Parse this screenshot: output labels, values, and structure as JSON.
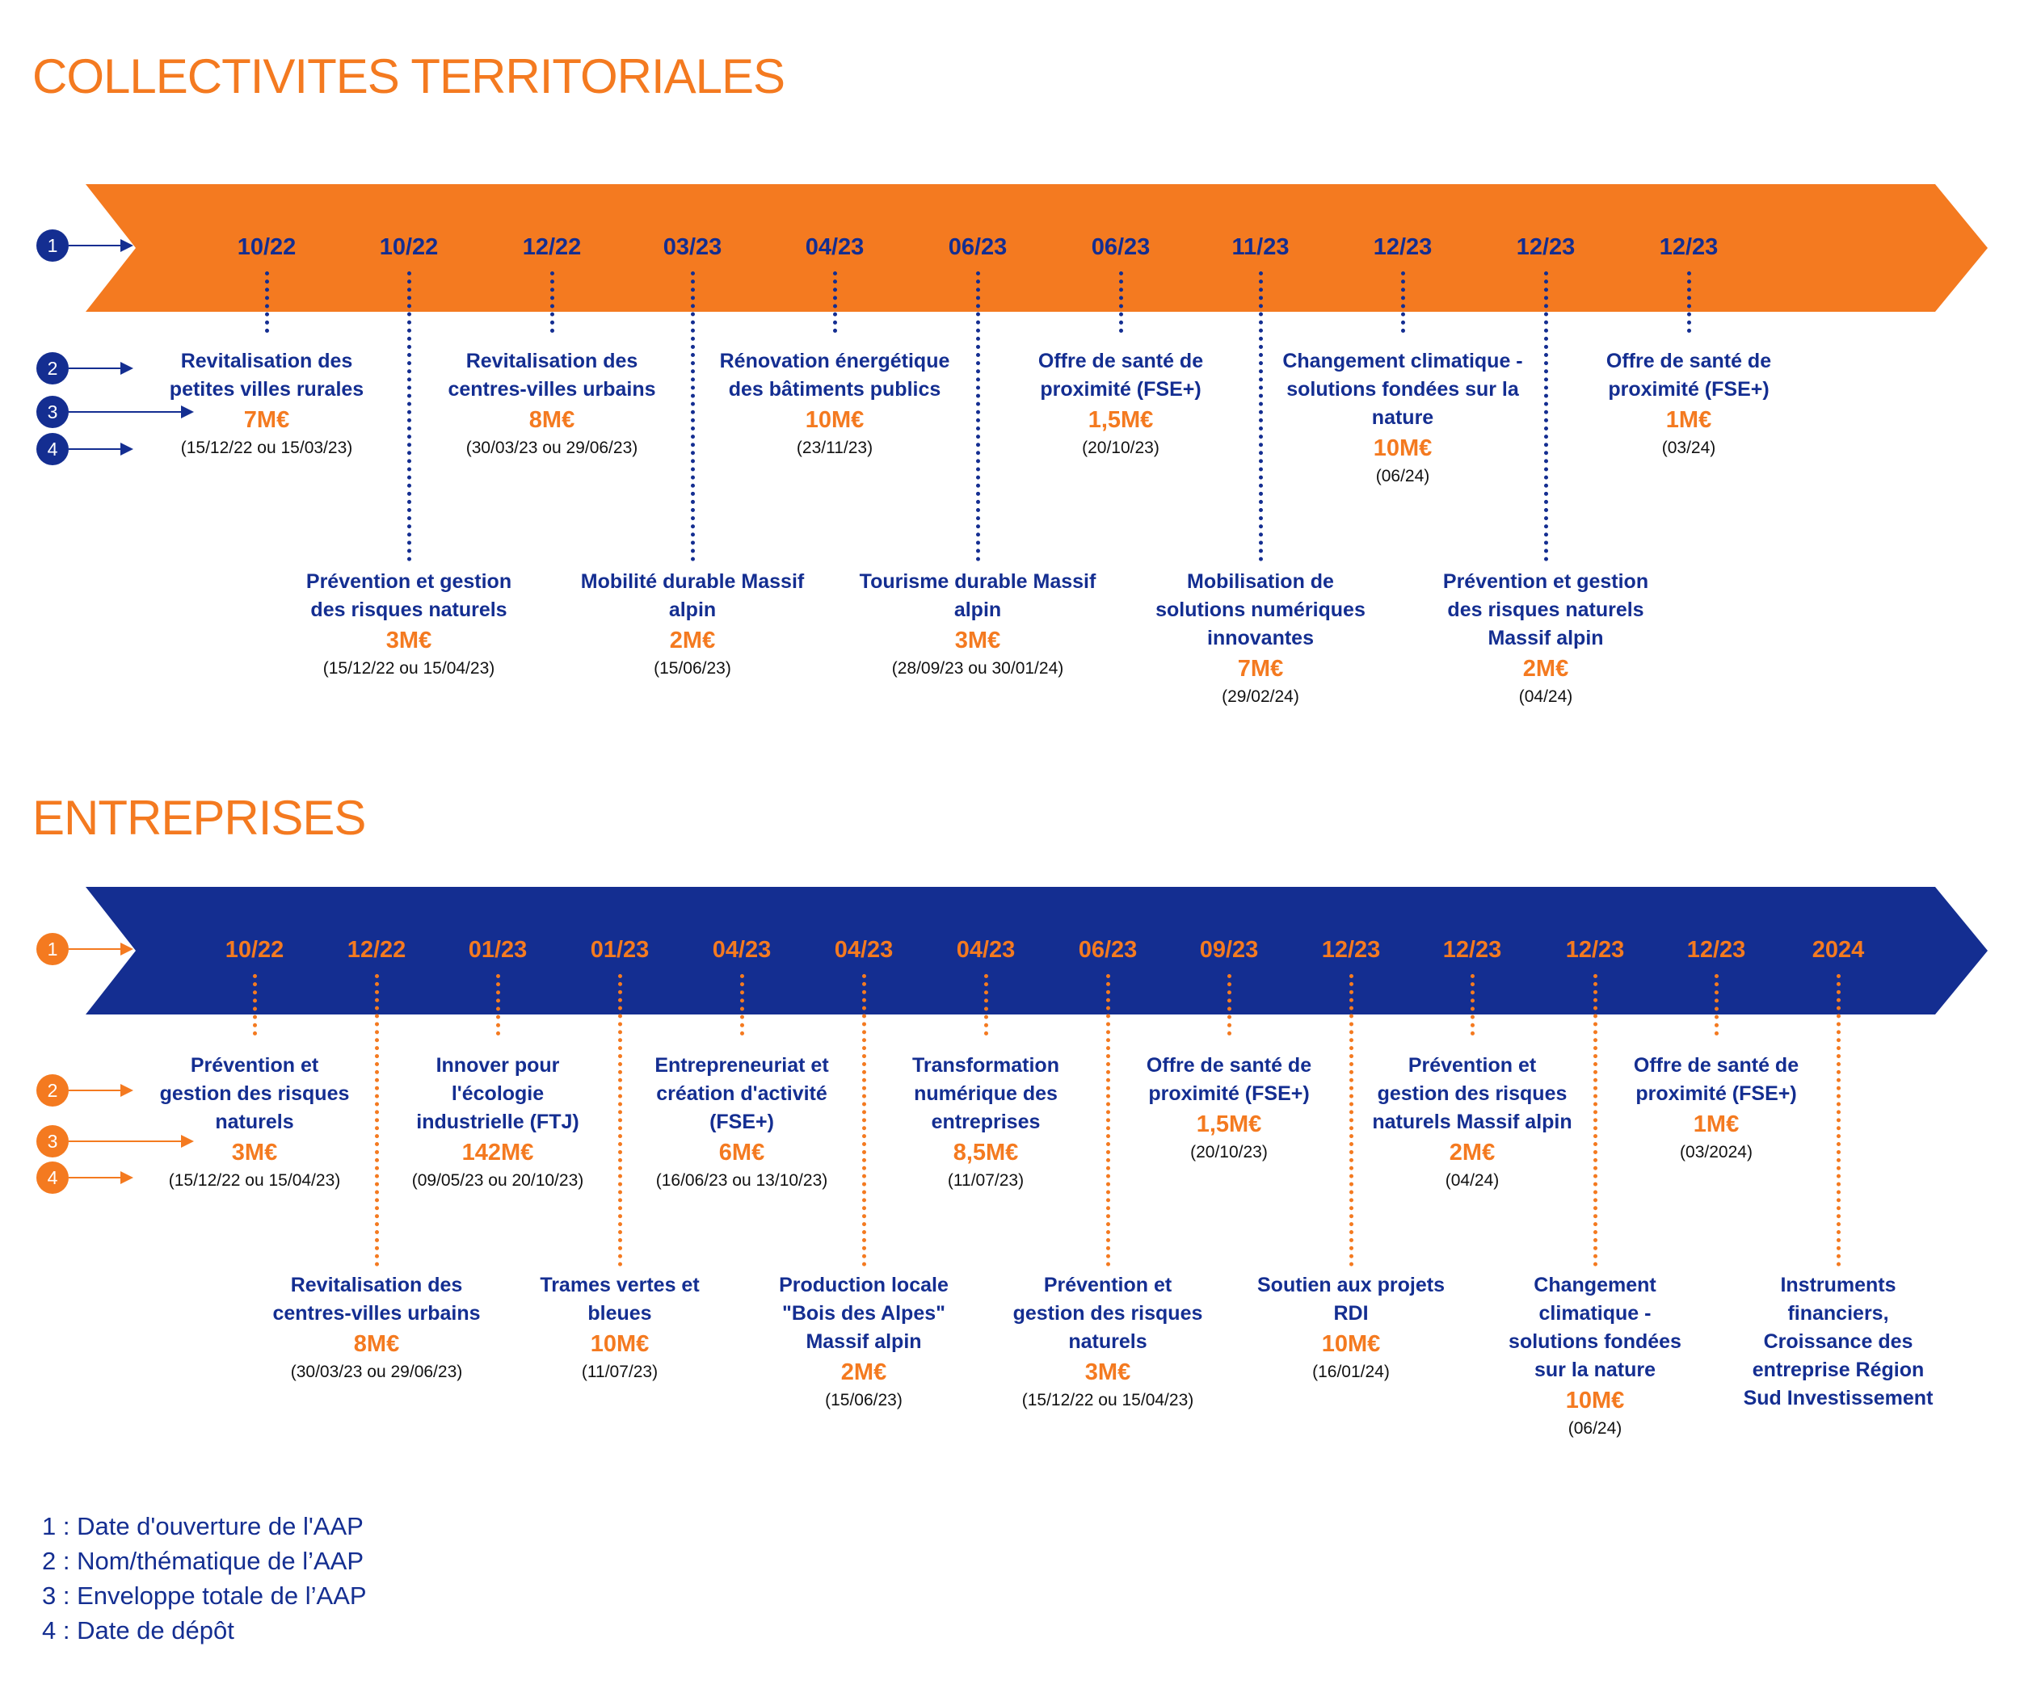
{
  "colors": {
    "orange": "#F47A20",
    "navy": "#142E91"
  },
  "sections": [
    {
      "title": "COLLECTIVITES TERRITORIALES",
      "band_color": "#F47A20",
      "date_color": "#142E91",
      "accent_color": "#142E91",
      "dates": [
        "10/22",
        "10/22",
        "12/22",
        "03/23",
        "04/23",
        "06/23",
        "06/23",
        "11/23",
        "12/23",
        "12/23",
        "12/23"
      ],
      "items": [
        {
          "row": "top",
          "name": [
            "Revitalisation des",
            "petites villes rurales"
          ],
          "amount": "7M€",
          "deposit": "(15/12/22 ou 15/03/23)"
        },
        {
          "row": "bottom",
          "name": [
            "Prévention et gestion",
            "des risques naturels"
          ],
          "amount": "3M€",
          "deposit": "(15/12/22 ou 15/04/23)"
        },
        {
          "row": "top",
          "name": [
            "Revitalisation des",
            "centres-villes urbains"
          ],
          "amount": "8M€",
          "deposit": "(30/03/23 ou 29/06/23)"
        },
        {
          "row": "bottom",
          "name": [
            "Mobilité durable Massif",
            "alpin"
          ],
          "amount": "2M€",
          "deposit": "(15/06/23)"
        },
        {
          "row": "top",
          "name": [
            "Rénovation énergétique",
            "des bâtiments publics"
          ],
          "amount": "10M€",
          "deposit": "(23/11/23)"
        },
        {
          "row": "bottom",
          "name": [
            "Tourisme durable Massif",
            "alpin"
          ],
          "amount": "3M€",
          "deposit": "(28/09/23 ou 30/01/24)"
        },
        {
          "row": "top",
          "name": [
            "Offre de santé de",
            "proximité (FSE+)"
          ],
          "amount": "1,5M€",
          "deposit": "(20/10/23)"
        },
        {
          "row": "bottom",
          "name": [
            "Mobilisation de",
            "solutions numériques",
            "innovantes"
          ],
          "amount": "7M€",
          "deposit": "(29/02/24)"
        },
        {
          "row": "top",
          "name": [
            "Changement climatique -",
            "solutions fondées sur la",
            "nature"
          ],
          "amount": "10M€",
          "deposit": "(06/24)"
        },
        {
          "row": "bottom",
          "name": [
            "Prévention et gestion",
            "des risques naturels",
            "Massif alpin"
          ],
          "amount": "2M€",
          "deposit": "(04/24)"
        },
        {
          "row": "top",
          "name": [
            "Offre de santé de",
            "proximité (FSE+)"
          ],
          "amount": "1M€",
          "deposit": "(03/24)"
        }
      ],
      "markers": [
        "1",
        "2",
        "3",
        "4"
      ]
    },
    {
      "title": "ENTREPRISES",
      "band_color": "#142E91",
      "date_color": "#F47A20",
      "accent_color": "#F47A20",
      "dates": [
        "10/22",
        "12/22",
        "01/23",
        "01/23",
        "04/23",
        "04/23",
        "04/23",
        "06/23",
        "09/23",
        "12/23",
        "12/23",
        "12/23",
        "12/23",
        "2024"
      ],
      "items": [
        {
          "row": "top",
          "name": [
            "Prévention et",
            "gestion des risques",
            "naturels"
          ],
          "amount": "3M€",
          "deposit": "(15/12/22 ou 15/04/23)"
        },
        {
          "row": "bottom",
          "name": [
            "Revitalisation des",
            "centres-villes urbains"
          ],
          "amount": "8M€",
          "deposit": "(30/03/23 ou 29/06/23)"
        },
        {
          "row": "top",
          "name": [
            "Innover pour",
            "l'écologie",
            "industrielle (FTJ)"
          ],
          "amount": "142M€",
          "deposit": "(09/05/23 ou 20/10/23)"
        },
        {
          "row": "bottom",
          "name": [
            "Trames vertes et",
            "bleues"
          ],
          "amount": "10M€",
          "deposit": "(11/07/23)"
        },
        {
          "row": "top",
          "name": [
            "Entrepreneuriat et",
            "création d'activité",
            "(FSE+)"
          ],
          "amount": "6M€",
          "deposit": "(16/06/23 ou 13/10/23)"
        },
        {
          "row": "bottom",
          "name": [
            "Production locale",
            "\"Bois des Alpes\"",
            "Massif alpin"
          ],
          "amount": "2M€",
          "deposit": "(15/06/23)"
        },
        {
          "row": "top",
          "name": [
            "Transformation",
            "numérique des",
            "entreprises"
          ],
          "amount": "8,5M€",
          "deposit": "(11/07/23)"
        },
        {
          "row": "bottom",
          "name": [
            "Prévention et",
            "gestion des risques",
            "naturels"
          ],
          "amount": "3M€",
          "deposit": "(15/12/22 ou 15/04/23)"
        },
        {
          "row": "top",
          "name": [
            "Offre de santé de",
            "proximité (FSE+)"
          ],
          "amount": "1,5M€",
          "deposit": "(20/10/23)"
        },
        {
          "row": "bottom",
          "name": [
            "Soutien aux projets",
            "RDI"
          ],
          "amount": "10M€",
          "deposit": "(16/01/24)"
        },
        {
          "row": "top",
          "name": [
            "Prévention et",
            "gestion des risques",
            "naturels Massif alpin"
          ],
          "amount": "2M€",
          "deposit": "(04/24)"
        },
        {
          "row": "bottom",
          "name": [
            "Changement",
            "climatique -",
            "solutions fondées",
            "sur la nature"
          ],
          "amount": "10M€",
          "deposit": "(06/24)"
        },
        {
          "row": "top",
          "name": [
            "Offre de santé de",
            "proximité (FSE+)"
          ],
          "amount": "1M€",
          "deposit": "(03/2024)"
        },
        {
          "row": "bottom",
          "name": [
            "Instruments",
            "financiers,",
            "Croissance des",
            "entreprise Région",
            "Sud Investissement"
          ]
        }
      ],
      "markers": [
        "1",
        "2",
        "3",
        "4"
      ]
    }
  ],
  "legend": [
    "1 : Date d'ouverture de l'AAP",
    "2 : Nom/thématique de l’AAP",
    "3 : Enveloppe totale de l’AAP",
    "4 : Date de dépôt"
  ]
}
